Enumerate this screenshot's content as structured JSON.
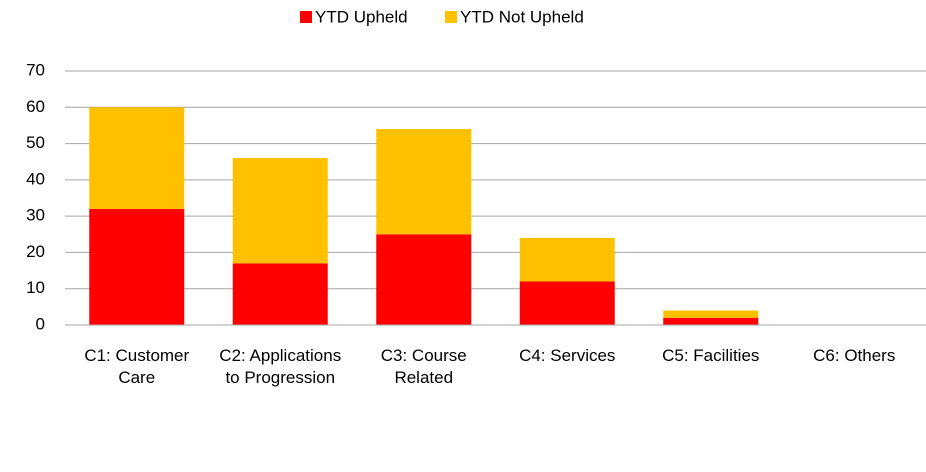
{
  "chart_data": {
    "type": "bar",
    "stacked": true,
    "categories": [
      "C1: Customer Care",
      "C2: Applications to Progression",
      "C3: Course Related",
      "C4: Services",
      "C5: Facilities",
      "C6: Others"
    ],
    "series": [
      {
        "name": "YTD Upheld",
        "color": "#ff0000",
        "values": [
          32,
          17,
          25,
          12,
          2,
          0
        ]
      },
      {
        "name": "YTD Not Upheld",
        "color": "#ffc000",
        "values": [
          28,
          29,
          29,
          12,
          2,
          0
        ]
      }
    ],
    "ylim": [
      0,
      70
    ],
    "yticks": [
      0,
      10,
      20,
      30,
      40,
      50,
      60,
      70
    ],
    "grid": true,
    "legend": "top"
  }
}
